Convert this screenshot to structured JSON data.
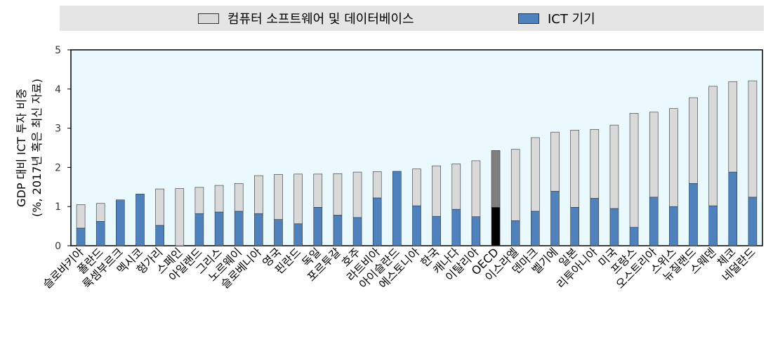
{
  "legend": {
    "software_label": "컴퓨터 소프트웨어 및 데이터베이스",
    "ict_label": "ICT 기기"
  },
  "colors": {
    "software": "#d9d9d9",
    "ict": "#4f81bd",
    "oecd_software": "#7f7f7f",
    "oecd_ict": "#000000",
    "plot_bg": "#eaf9fd",
    "legend_bg": "#e5e5e5"
  },
  "chart_data": {
    "type": "bar",
    "stacked": true,
    "ylabel_line1": "GDP 대비 ICT 투자 비중",
    "ylabel_line2": "(%, 2017년 혹은 최신 자료)",
    "ylim": [
      0,
      5
    ],
    "yticks": [
      "0",
      "1",
      "2",
      "3",
      "4",
      "5"
    ],
    "grid": false,
    "legend_position": "top",
    "categories": [
      "슬로바키아",
      "폴란드",
      "룩셈부르크",
      "멕시코",
      "헝가리",
      "스페인",
      "아일랜드",
      "그리스",
      "노르웨이",
      "슬로베니아",
      "영국",
      "핀란드",
      "독일",
      "포르투갈",
      "호주",
      "라트비아",
      "아이슬란드",
      "에스토니아",
      "한국",
      "캐나다",
      "이탈리아",
      "OECD",
      "이스라엘",
      "덴마크",
      "벨기에",
      "일본",
      "리투아니아",
      "미국",
      "프랑스",
      "오스트리아",
      "스위스",
      "뉴질랜드",
      "스웨덴",
      "체코",
      "네덜란드"
    ],
    "series": [
      {
        "name": "ICT 기기",
        "values": [
          0.45,
          0.62,
          1.17,
          1.32,
          0.52,
          0.0,
          0.82,
          0.86,
          0.88,
          0.82,
          0.67,
          0.56,
          0.98,
          0.78,
          0.72,
          1.22,
          1.9,
          1.02,
          0.75,
          0.93,
          0.74,
          0.98,
          0.64,
          0.88,
          1.39,
          0.98,
          1.21,
          0.95,
          0.47,
          1.24,
          1.0,
          1.59,
          1.02,
          1.88,
          1.24
        ]
      },
      {
        "name": "컴퓨터 소프트웨어 및 데이터베이스",
        "values": [
          0.6,
          0.46,
          0.0,
          0.0,
          0.93,
          1.46,
          0.67,
          0.68,
          0.71,
          0.97,
          1.15,
          1.27,
          0.85,
          1.06,
          1.16,
          0.67,
          0.0,
          0.94,
          1.29,
          1.16,
          1.43,
          1.45,
          1.82,
          1.88,
          1.51,
          1.97,
          1.76,
          2.13,
          2.91,
          2.17,
          2.5,
          2.19,
          3.05,
          2.31,
          2.97
        ]
      }
    ],
    "highlight_category": "OECD"
  }
}
